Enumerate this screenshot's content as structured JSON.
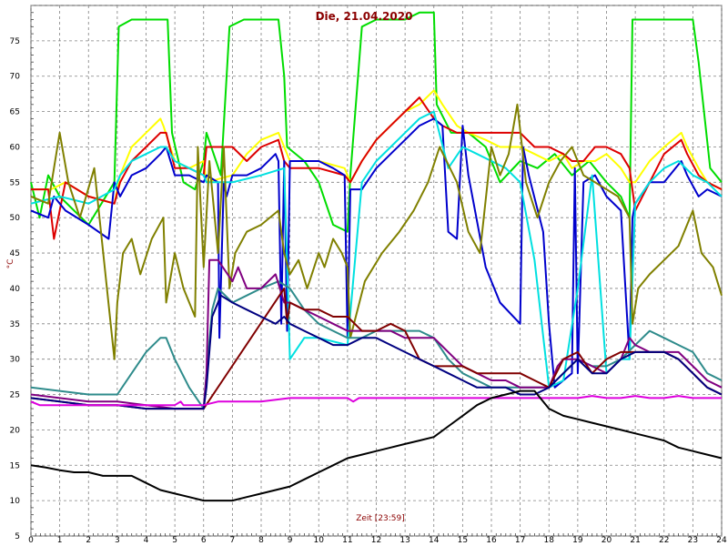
{
  "chart_data": {
    "type": "line",
    "title": "Die, 21.04.2020",
    "xlabel": "Zeit [23:59]",
    "ylabel": "°C",
    "xlim": [
      0,
      24
    ],
    "ylim": [
      5,
      80
    ],
    "xticks": [
      "0",
      "1",
      "2",
      "3",
      "4",
      "5",
      "6",
      "7",
      "8",
      "9",
      "10",
      "11",
      "12",
      "13",
      "14",
      "15",
      "16",
      "17",
      "18",
      "19",
      "20",
      "21",
      "22",
      "23",
      "24"
    ],
    "yticks": [
      "5",
      "10",
      "15",
      "20",
      "25",
      "30",
      "35",
      "40",
      "45",
      "50",
      "55",
      "60",
      "65",
      "70",
      "75"
    ],
    "grid": "dashed",
    "background": "#ffffff",
    "series": [
      {
        "color": "#00dd00",
        "x": [
          0,
          0.3,
          0.6,
          1,
          2,
          2.9,
          3.05,
          3.5,
          4,
          4.5,
          4.75,
          4.9,
          5.3,
          5.7,
          6.0,
          6.1,
          6.6,
          6.9,
          7.4,
          8,
          8.6,
          8.8,
          8.9,
          9.5,
          10,
          10.5,
          11.0,
          11.1,
          11.5,
          12,
          12.5,
          13,
          13.5,
          14.0,
          14.1,
          14.6,
          15.2,
          15.8,
          16.3,
          17.0,
          17.6,
          18.2,
          18.8,
          19.4,
          20.0,
          20.5,
          20.8,
          20.9,
          21.3,
          21.5,
          22.0,
          22.5,
          23.0,
          23.2,
          23.6,
          24
        ],
        "y": [
          55,
          50,
          56,
          53,
          49,
          55,
          77,
          78,
          78,
          78,
          78,
          62,
          55,
          54,
          58,
          62,
          56,
          77,
          78,
          78,
          78,
          70,
          60,
          58,
          55,
          49,
          48,
          56,
          77,
          78,
          78,
          78,
          79,
          79,
          66,
          62,
          62,
          60,
          55,
          58,
          57,
          59,
          56,
          58,
          55,
          53,
          50,
          78,
          78,
          78,
          78,
          78,
          78,
          72,
          57,
          55
        ]
      },
      {
        "color": "#ffff00",
        "x": [
          0,
          0.7,
          1.2,
          2,
          2.9,
          3.1,
          3.5,
          4,
          4.5,
          4.6,
          5.0,
          5.5,
          6.0,
          6.1,
          7,
          7.5,
          8,
          8.6,
          8.8,
          9,
          10,
          10.9,
          11.1,
          11.5,
          12,
          12.5,
          13,
          13.5,
          14.0,
          14.3,
          14.8,
          15.2,
          15.8,
          16.3,
          17.0,
          17.5,
          18.0,
          18.5,
          18.8,
          19.2,
          19.6,
          20.0,
          20.5,
          20.8,
          21.0,
          21.5,
          22,
          22.6,
          22.8,
          23.2,
          23.5,
          24
        ],
        "y": [
          54,
          54,
          55,
          53,
          52,
          56,
          60,
          62,
          64,
          63,
          58,
          57,
          58,
          55,
          56,
          59,
          61,
          62,
          60,
          58,
          58,
          57,
          55,
          58,
          61,
          63,
          65,
          66,
          68,
          66,
          63,
          62,
          61,
          60,
          60,
          59,
          58,
          59,
          57,
          58,
          58,
          59,
          57,
          55,
          55,
          58,
          60,
          62,
          60,
          57,
          55,
          54
        ]
      },
      {
        "color": "#dd0000",
        "x": [
          0,
          0.6,
          0.8,
          1.2,
          2,
          2.9,
          3.1,
          3.5,
          4,
          4.5,
          4.7,
          5.0,
          5.5,
          6.0,
          6.1,
          7,
          7.5,
          8,
          8.6,
          8.8,
          9,
          10,
          10.9,
          11.1,
          11.5,
          12,
          12.5,
          13,
          13.5,
          14.0,
          14.3,
          14.8,
          15.2,
          15.8,
          16.3,
          17.0,
          17.5,
          18.0,
          18.5,
          18.8,
          19.2,
          19.6,
          20.0,
          20.5,
          20.8,
          21.0,
          21.5,
          22,
          22.6,
          22.8,
          23.2,
          23.5,
          24
        ],
        "y": [
          54,
          54,
          47,
          55,
          53,
          52,
          55,
          58,
          60,
          62,
          62,
          57,
          57,
          56,
          60,
          60,
          58,
          60,
          61,
          58,
          57,
          57,
          56,
          55,
          58,
          61,
          63,
          65,
          67,
          64,
          63,
          62,
          62,
          62,
          62,
          62,
          60,
          60,
          59,
          58,
          58,
          60,
          60,
          59,
          57,
          51,
          55,
          59,
          61,
          59,
          56,
          55,
          54
        ]
      },
      {
        "color": "#0000cc",
        "x": [
          0,
          0.6,
          0.8,
          1.2,
          2,
          2.7,
          2.9,
          3.1,
          3.5,
          4,
          4.5,
          4.7,
          5.0,
          5.5,
          6.0,
          6.1,
          6.5,
          6.55,
          6.7,
          6.8,
          7,
          7.5,
          8,
          8.5,
          8.6,
          8.7,
          8.8,
          8.9,
          9.0,
          9.3,
          10,
          10.5,
          10.9,
          11.0,
          11.1,
          11.5,
          12,
          12.5,
          13,
          13.5,
          14.0,
          14.3,
          14.5,
          14.8,
          15.0,
          15.2,
          15.8,
          16.3,
          17.0,
          17.1,
          17.3,
          17.8,
          18.0,
          18.2,
          18.5,
          18.8,
          18.9,
          19.0,
          19.2,
          19.6,
          20.0,
          20.5,
          20.8,
          20.9,
          21.0,
          21.5,
          22,
          22.6,
          22.8,
          23.2,
          23.5,
          24
        ],
        "y": [
          51,
          50,
          53,
          51,
          49,
          47,
          55,
          53,
          56,
          57,
          59,
          60,
          56,
          56,
          55,
          56,
          55,
          33,
          55,
          53,
          56,
          56,
          57,
          59,
          58,
          35,
          58,
          34,
          58,
          58,
          58,
          57,
          56,
          33,
          54,
          54,
          57,
          59,
          61,
          63,
          64,
          63,
          48,
          47,
          63,
          56,
          43,
          38,
          35,
          60,
          56,
          48,
          35,
          26,
          27,
          28,
          57,
          28,
          55,
          56,
          53,
          51,
          30,
          50,
          52,
          55,
          55,
          58,
          56,
          53,
          54,
          53
        ]
      },
      {
        "color": "#00e0e0",
        "x": [
          0,
          1,
          2,
          2.9,
          3.1,
          3.5,
          4,
          4.5,
          4.7,
          5.0,
          5.5,
          6.0,
          6.1,
          7,
          8,
          8.8,
          9,
          9.5,
          10,
          11,
          11.5,
          12,
          12.5,
          13,
          13.5,
          14,
          14.5,
          15,
          15.5,
          16,
          16.5,
          17,
          17.5,
          18,
          18.5,
          19,
          19.5,
          20,
          20.5,
          20.8,
          21,
          21.5,
          22,
          22.5,
          23,
          23.5,
          24
        ],
        "y": [
          52,
          53,
          52,
          54,
          56,
          58,
          59,
          60,
          60,
          58,
          57,
          56,
          55,
          55,
          56,
          57,
          30,
          33,
          33,
          32,
          55,
          58,
          60,
          62,
          64,
          65,
          57,
          60,
          59,
          58,
          57,
          55,
          44,
          26,
          27,
          40,
          56,
          28,
          30,
          30,
          52,
          55,
          57,
          58,
          56,
          55,
          53
        ]
      },
      {
        "color": "#808000",
        "x": [
          0,
          0.6,
          1.0,
          1.3,
          1.7,
          2.2,
          2.9,
          3.0,
          3.2,
          3.5,
          3.8,
          4.2,
          4.6,
          4.7,
          5.0,
          5.3,
          5.7,
          5.8,
          6.0,
          6.2,
          6.5,
          6.7,
          6.9,
          7.1,
          7.5,
          8.0,
          8.6,
          8.8,
          9.0,
          9.3,
          9.6,
          10,
          10.2,
          10.5,
          10.8,
          11.0,
          11.1,
          11.6,
          12.2,
          12.8,
          13.3,
          13.8,
          14.2,
          14.8,
          15.2,
          15.6,
          16.0,
          16.3,
          16.6,
          16.9,
          17.2,
          17.6,
          18.0,
          18.4,
          18.8,
          19.2,
          19.6,
          20.0,
          20.4,
          20.8,
          20.9,
          21.1,
          21.5,
          22.0,
          22.5,
          22.9,
          23.0,
          23.3,
          23.7,
          24
        ],
        "y": [
          53,
          52,
          62,
          55,
          50,
          57,
          30,
          38,
          45,
          47,
          42,
          47,
          50,
          38,
          45,
          40,
          36,
          60,
          43,
          58,
          45,
          60,
          40,
          45,
          48,
          49,
          51,
          45,
          42,
          44,
          40,
          45,
          43,
          47,
          45,
          43,
          33,
          41,
          45,
          48,
          51,
          55,
          60,
          55,
          48,
          45,
          60,
          56,
          59,
          66,
          55,
          50,
          55,
          58,
          60,
          56,
          55,
          54,
          53,
          50,
          35,
          40,
          42,
          44,
          46,
          50,
          51,
          45,
          43,
          39
        ]
      },
      {
        "color": "#2e8b8b",
        "x": [
          0,
          1,
          2,
          3,
          3.5,
          4,
          4.5,
          4.7,
          5.0,
          5.5,
          6.0,
          6.1,
          6.3,
          6.5,
          7,
          7.5,
          8,
          8.6,
          9,
          9.5,
          10,
          10.5,
          11,
          11.5,
          12,
          12.5,
          13,
          13.5,
          14,
          14.5,
          15,
          15.5,
          16,
          16.5,
          17,
          17.5,
          18,
          18.5,
          19,
          19.5,
          20,
          20.5,
          21,
          21.5,
          22,
          22.5,
          23,
          23.5,
          24
        ],
        "y": [
          26,
          25.5,
          25,
          25,
          28,
          31,
          33,
          33,
          30,
          26,
          23,
          28,
          37,
          40,
          38,
          39,
          40,
          41,
          40,
          37,
          35,
          34,
          33,
          33,
          34,
          34,
          34,
          34,
          33,
          30,
          28,
          27,
          26,
          26,
          26,
          26,
          26,
          28,
          30,
          29,
          29,
          30,
          32,
          34,
          33,
          32,
          31,
          28,
          27
        ]
      },
      {
        "color": "#800080",
        "x": [
          0,
          1,
          2,
          3,
          4,
          5,
          6.0,
          6.1,
          6.2,
          6.5,
          7.0,
          7.2,
          7.5,
          8,
          8.5,
          8.8,
          9,
          9.5,
          10,
          10.5,
          11,
          11.5,
          12,
          12.5,
          13,
          13.5,
          14,
          14.5,
          15,
          15.5,
          16,
          16.5,
          17,
          17.5,
          18,
          18.3,
          18.5,
          19,
          19.5,
          20,
          20.5,
          20.8,
          21,
          21.5,
          22,
          22.5,
          23,
          23.5,
          24
        ],
        "y": [
          25,
          24.5,
          24,
          24,
          23.5,
          23,
          23,
          28,
          44,
          44,
          41,
          43,
          40,
          40,
          42,
          38,
          38,
          37,
          36,
          35,
          34,
          34,
          34,
          34,
          33,
          33,
          33,
          31,
          29,
          28,
          27,
          27,
          26,
          26,
          26,
          29,
          30,
          30,
          29,
          28,
          30,
          33,
          32,
          31,
          31,
          31,
          29,
          27,
          26
        ]
      },
      {
        "color": "#800000",
        "x": [
          0,
          1,
          2,
          3,
          4,
          5,
          6.0,
          8.8,
          8.9,
          9,
          9.5,
          10,
          10.5,
          11,
          11.5,
          12,
          12.5,
          13,
          13.5,
          14,
          14.5,
          15,
          15.5,
          16,
          16.5,
          17,
          17.5,
          18,
          18.5,
          19,
          19.5,
          20,
          20.5,
          21,
          21.5,
          22,
          22.5,
          23,
          23.5,
          24
        ],
        "y": [
          24.5,
          24,
          23.5,
          23.5,
          23,
          23,
          23,
          40,
          35,
          38,
          37,
          37,
          36,
          36,
          34,
          34,
          35,
          34,
          30,
          29,
          29,
          29,
          28,
          28,
          28,
          28,
          27,
          26,
          30,
          31,
          28,
          30,
          31,
          31,
          31,
          31,
          30,
          28,
          26,
          25
        ]
      },
      {
        "color": "#000080",
        "x": [
          0,
          1,
          2,
          3,
          4,
          5,
          6.0,
          6.1,
          6.3,
          6.6,
          7,
          7.5,
          8,
          8.5,
          8.8,
          9,
          9.5,
          10,
          10.5,
          11,
          11.5,
          12,
          12.5,
          13,
          13.5,
          14,
          14.5,
          15,
          15.5,
          16,
          16.5,
          17,
          17.5,
          18,
          18.5,
          19,
          19.5,
          20,
          20.5,
          21,
          21.5,
          22,
          22.5,
          23,
          23.5,
          24
        ],
        "y": [
          24.5,
          24,
          23.5,
          23.5,
          23,
          23,
          23,
          26,
          36,
          39,
          38,
          37,
          36,
          35,
          36,
          35,
          34,
          33,
          32,
          32,
          33,
          33,
          32,
          31,
          30,
          29,
          28,
          27,
          26,
          26,
          26,
          25,
          25,
          26,
          28,
          30,
          28,
          28,
          30,
          31,
          31,
          31,
          30,
          28,
          26,
          25
        ]
      },
      {
        "color": "#dd00dd",
        "x": [
          0,
          0.3,
          0.4,
          1,
          2,
          3,
          4,
          5,
          5.2,
          5.3,
          6,
          6.5,
          7,
          8,
          9,
          10,
          11,
          11.2,
          11.4,
          12,
          13,
          14,
          15,
          16,
          17,
          18,
          19,
          19.5,
          20,
          20.5,
          21,
          21.5,
          22,
          22.5,
          23,
          23.5,
          24
        ],
        "y": [
          24,
          23.5,
          23.5,
          23.5,
          23.5,
          23.5,
          23.5,
          23.5,
          24,
          23.5,
          23.5,
          24,
          24,
          24,
          24.5,
          24.5,
          24.5,
          24,
          24.5,
          24.5,
          24.5,
          24.5,
          24.5,
          24.5,
          24.5,
          24.5,
          24.5,
          24.8,
          24.5,
          24.5,
          24.8,
          24.5,
          24.5,
          24.8,
          24.5,
          24.5,
          24.5
        ]
      },
      {
        "color": "#000000",
        "x": [
          0,
          0.5,
          1,
          1.5,
          2,
          2.5,
          3,
          3.5,
          4,
          4.5,
          5,
          5.5,
          6,
          6.5,
          7,
          7.5,
          8,
          8.5,
          9,
          9.5,
          10,
          10.5,
          11,
          11.5,
          12,
          12.5,
          13,
          13.5,
          14,
          14.5,
          15,
          15.5,
          16,
          16.5,
          17,
          17.5,
          18,
          18.5,
          19,
          19.5,
          20,
          20.5,
          21,
          21.5,
          22,
          22.5,
          23,
          23.5,
          24
        ],
        "y": [
          15,
          14.7,
          14.3,
          14,
          14,
          13.5,
          13.5,
          13.5,
          12.5,
          11.5,
          11,
          10.5,
          10,
          10,
          10,
          10.5,
          11,
          11.5,
          12,
          13,
          14,
          15,
          16,
          16.5,
          17,
          17.5,
          18,
          18.5,
          19,
          20.5,
          22,
          23.5,
          24.5,
          25,
          25.5,
          25.5,
          23,
          22,
          21.5,
          21,
          20.5,
          20,
          19.5,
          19,
          18.5,
          17.5,
          17,
          16.5,
          16
        ]
      }
    ]
  }
}
